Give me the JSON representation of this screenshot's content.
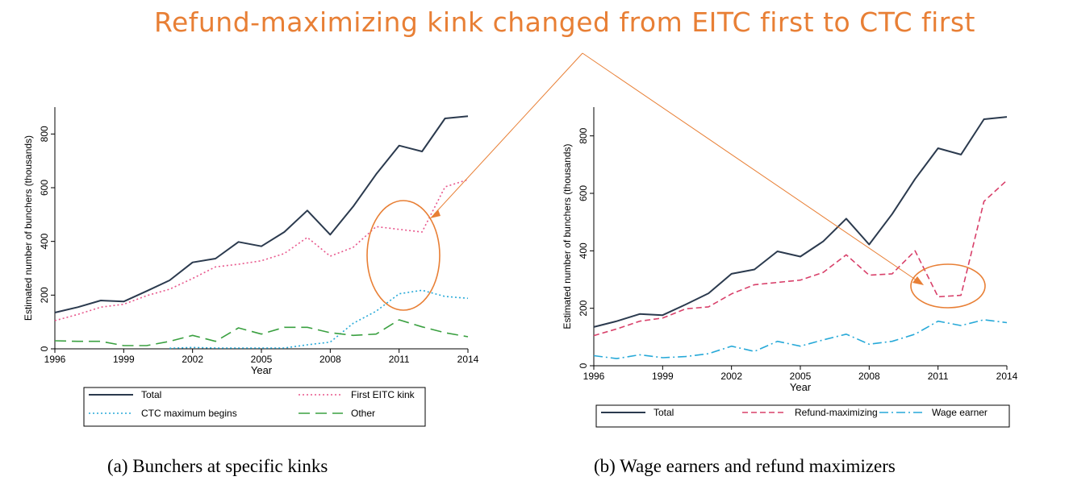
{
  "headline": "Refund-maximizing kink changed from EITC first to CTC first",
  "annotation_color": "#e87f35",
  "chart_data": [
    {
      "type": "line",
      "caption": "(a) Bunchers at specific kinks",
      "xlabel": "Year",
      "ylabel": "Estimated number of bunchers (thousands)",
      "xlim": [
        1996,
        2014
      ],
      "ylim": [
        0,
        900
      ],
      "xticks": [
        1996,
        1999,
        2002,
        2005,
        2008,
        2011,
        2014
      ],
      "yticks": [
        0,
        200,
        400,
        600,
        800
      ],
      "x": [
        1996,
        1997,
        1998,
        1999,
        2000,
        2001,
        2002,
        2003,
        2004,
        2005,
        2006,
        2007,
        2008,
        2009,
        2010,
        2011,
        2012,
        2013,
        2014
      ],
      "legend_position": "bottom",
      "series": [
        {
          "name": "Total",
          "color": "#2b3a4e",
          "style": "solid",
          "values": [
            135,
            155,
            180,
            176,
            215,
            255,
            322,
            336,
            398,
            382,
            435,
            515,
            425,
            530,
            650,
            757,
            735,
            858,
            866
          ]
        },
        {
          "name": "First EITC kink",
          "color": "#e8578c",
          "style": "dotted",
          "values": [
            105,
            128,
            155,
            166,
            198,
            222,
            262,
            305,
            315,
            328,
            355,
            415,
            345,
            378,
            455,
            445,
            435,
            603,
            630
          ]
        },
        {
          "name": "CTC maximum begins",
          "color": "#27a9d8",
          "style": "dotted",
          "values": [
            null,
            null,
            null,
            null,
            null,
            2,
            5,
            3,
            3,
            3,
            3,
            15,
            25,
            95,
            140,
            205,
            218,
            195,
            188
          ]
        },
        {
          "name": "Other",
          "color": "#3aa040",
          "style": "longdash",
          "values": [
            30,
            28,
            28,
            12,
            12,
            28,
            50,
            28,
            78,
            55,
            80,
            80,
            60,
            50,
            55,
            108,
            82,
            60,
            45
          ]
        }
      ]
    },
    {
      "type": "line",
      "caption": "(b) Wage earners and refund maximizers",
      "xlabel": "Year",
      "ylabel": "Estimated number of bunchers (thousands)",
      "xlim": [
        1996,
        2014
      ],
      "ylim": [
        0,
        900
      ],
      "xticks": [
        1996,
        1999,
        2002,
        2005,
        2008,
        2011,
        2014
      ],
      "yticks": [
        0,
        200,
        400,
        600,
        800
      ],
      "x": [
        1996,
        1997,
        1998,
        1999,
        2000,
        2001,
        2002,
        2003,
        2004,
        2005,
        2006,
        2007,
        2008,
        2009,
        2010,
        2011,
        2012,
        2013,
        2014
      ],
      "legend_position": "bottom",
      "series": [
        {
          "name": "Total",
          "color": "#2b3a4e",
          "style": "solid",
          "values": [
            135,
            155,
            180,
            176,
            213,
            252,
            320,
            335,
            398,
            380,
            433,
            512,
            422,
            528,
            650,
            757,
            735,
            858,
            866
          ]
        },
        {
          "name": "Refund-maximizing",
          "color": "#d8406a",
          "style": "dashed",
          "values": [
            105,
            128,
            155,
            166,
            198,
            205,
            250,
            282,
            290,
            298,
            325,
            386,
            315,
            320,
            400,
            240,
            245,
            572,
            645
          ]
        },
        {
          "name": "Wage earner",
          "color": "#27a9d8",
          "style": "dashdot",
          "values": [
            35,
            25,
            38,
            28,
            32,
            42,
            68,
            50,
            85,
            68,
            90,
            110,
            75,
            85,
            110,
            155,
            140,
            160,
            150
          ]
        }
      ]
    }
  ]
}
